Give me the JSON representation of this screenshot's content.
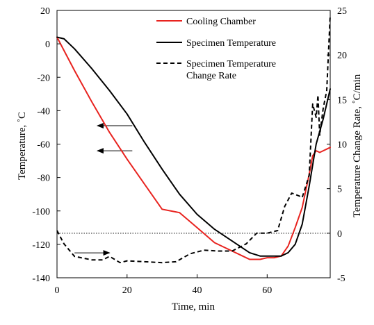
{
  "chart_data": {
    "type": "line",
    "title": "",
    "xlabel": "Time, min",
    "ylabel": "Temperature, ˚C",
    "y2label": "Temperature Change Rate, ˚C/min",
    "xlim": [
      0,
      78
    ],
    "ylim": [
      -140,
      20
    ],
    "y2lim": [
      -5,
      25
    ],
    "x_ticks": [
      0,
      20,
      40,
      60
    ],
    "y_ticks": [
      20,
      0,
      -20,
      -40,
      -60,
      -80,
      -100,
      -120,
      -140
    ],
    "y2_ticks": [
      25,
      20,
      15,
      10,
      5,
      0,
      -5
    ],
    "legend_position": "top-right",
    "grid": false,
    "series": [
      {
        "name": "Cooling Chamber",
        "axis": "left",
        "color": "#e8231f",
        "style": "solid",
        "x": [
          0,
          5,
          10,
          15,
          20,
          25,
          30,
          35,
          40,
          45,
          50,
          53,
          55,
          58,
          60,
          62,
          64,
          66,
          68,
          70,
          72,
          73,
          74,
          75,
          76,
          77,
          78
        ],
        "y": [
          4,
          -16,
          -35,
          -53,
          -69,
          -84,
          -99,
          -101,
          -110,
          -119,
          -124,
          -127,
          -129,
          -129,
          -128,
          -128,
          -127,
          -121,
          -110,
          -98,
          -78,
          -67,
          -64,
          -65,
          -64,
          -63,
          -62
        ]
      },
      {
        "name": "Specimen Temperature",
        "axis": "left",
        "color": "#000000",
        "style": "solid",
        "x": [
          0,
          2,
          5,
          10,
          15,
          20,
          25,
          30,
          35,
          40,
          45,
          50,
          55,
          58,
          60,
          62,
          64,
          66,
          68,
          70,
          72,
          74,
          76,
          78
        ],
        "y": [
          4,
          3,
          -3,
          -15,
          -28,
          -42,
          -59,
          -75,
          -90,
          -102,
          -111,
          -118,
          -125,
          -127,
          -127,
          -127,
          -127,
          -125,
          -120,
          -108,
          -85,
          -60,
          -45,
          -27
        ]
      },
      {
        "name": "Specimen Temperature Change Rate",
        "axis": "right",
        "color": "#000000",
        "style": "dashed",
        "x": [
          0,
          2,
          5,
          10,
          13,
          15,
          18,
          20,
          25,
          30,
          34,
          38,
          42,
          46,
          50,
          54,
          57,
          60,
          63,
          65,
          67,
          69,
          70,
          72,
          73,
          74,
          74.5,
          75,
          76,
          77,
          78
        ],
        "y": [
          0.3,
          -1.2,
          -2.6,
          -3.0,
          -3.0,
          -2.6,
          -3.3,
          -3.1,
          -3.2,
          -3.3,
          -3.2,
          -2.3,
          -1.9,
          -2.0,
          -2.0,
          -1.2,
          0.0,
          0.0,
          0.3,
          3.0,
          4.5,
          4.2,
          4.0,
          6.5,
          14.5,
          13.0,
          15.5,
          11.0,
          14.0,
          16.0,
          24.5
        ]
      }
    ],
    "annotations": [
      {
        "type": "hline",
        "axis": "right",
        "y": 0,
        "style": "dotted"
      },
      {
        "type": "arrow",
        "direction": "left",
        "points_to": "left-axis"
      },
      {
        "type": "arrow",
        "direction": "left",
        "points_to": "left-axis"
      },
      {
        "type": "arrow",
        "direction": "right",
        "points_to": "right-axis"
      }
    ]
  }
}
